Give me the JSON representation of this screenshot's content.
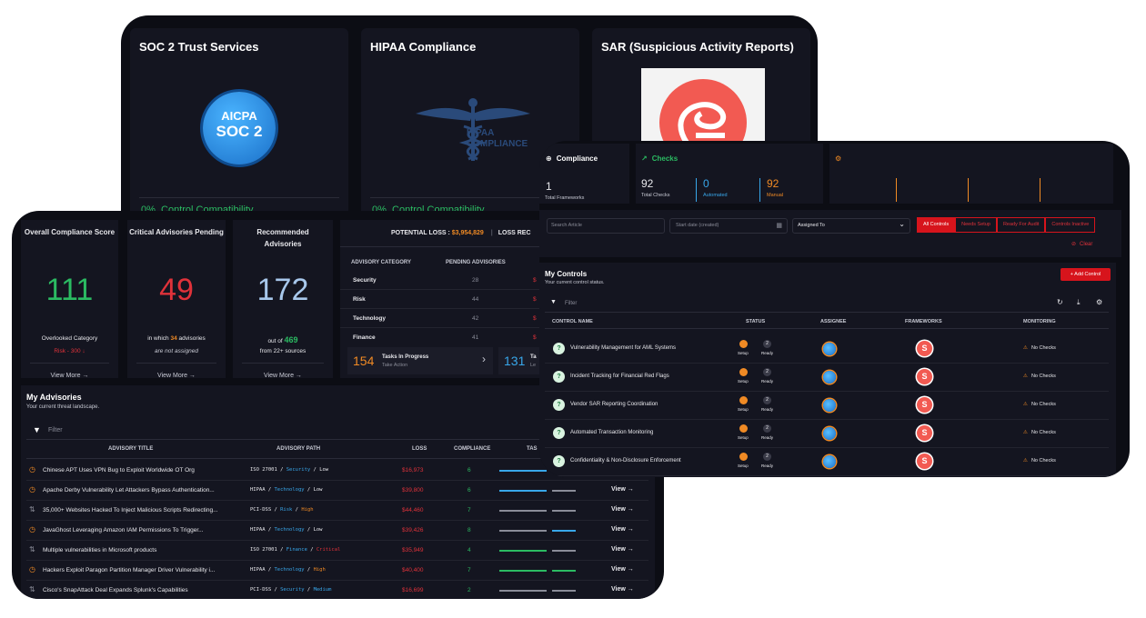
{
  "frameworks": {
    "soc2": {
      "title": "SOC 2 Trust Services",
      "logo_line1": "AICPA",
      "logo_line2": "SOC 2",
      "footer": "0%  Control Compatibility"
    },
    "hipaa": {
      "title": "HIPAA Compliance",
      "logo_text1": "HIPAA",
      "logo_text2": "COMPLIANCE",
      "footer": "0%  Control Compatibility"
    },
    "sar": {
      "title": "SAR (Suspicious Activity Reports)"
    }
  },
  "stats": [
    {
      "title": "Overall Compliance Score",
      "value": "111",
      "color": "#2bbb62",
      "sub1": "Overlooked Category",
      "sub2": "Risk - 300 ↓",
      "link": "View More →"
    },
    {
      "title": "Critical Advisories Pending",
      "value": "49",
      "color": "#e0323a",
      "sub1_pre": "in which ",
      "sub1_num": "34",
      "sub1_post": " advisories",
      "sub2": "are not assigned",
      "link": "View More →"
    },
    {
      "title": "Recommended Advisories",
      "value": "172",
      "color": "#a8c8ec",
      "sub1_pre": "out of ",
      "sub1_num": "469",
      "sub2": "from 22+ sources",
      "link": "View More →"
    }
  ],
  "loss": {
    "label": "POTENTIAL LOSS : ",
    "value": "$3,954,829",
    "label2": "LOSS REC",
    "columns": [
      "ADVISORY CATEGORY",
      "PENDING ADVISORIES"
    ],
    "rows": [
      {
        "category": "Security",
        "pending": "28"
      },
      {
        "category": "Risk",
        "pending": "44"
      },
      {
        "category": "Technology",
        "pending": "42"
      },
      {
        "category": "Finance",
        "pending": "41"
      }
    ],
    "tasks1": {
      "num": "154",
      "label": "Tasks In Progress",
      "sub": "Take Action"
    },
    "tasks2": {
      "num": "131",
      "label": "Ta",
      "sub": "Le"
    }
  },
  "advisories": {
    "title": "My Advisories",
    "subtitle": "Your current threat landscape.",
    "filter_placeholder": "Filter",
    "columns": [
      "ADVISORY TITLE",
      "ADVISORY PATH",
      "LOSS",
      "COMPLIANCE",
      "TAS"
    ],
    "view_label": "View →",
    "rows": [
      {
        "icon": "clock-icon",
        "title": "Chinese APT Uses VPN Bug to Exploit Worldwide OT Org",
        "fw": "ISO 27001",
        "cat": "Security",
        "level": "Low",
        "level_color": "#e8e8ec",
        "loss": "$16,973",
        "compliance": "6",
        "view": "View →",
        "bar1": "#38a7ea",
        "bar2": "#2bbb62"
      },
      {
        "icon": "clock-icon",
        "title": "Apache Derby Vulnerability Let Attackers Bypass Authentication...",
        "fw": "HIPAA",
        "cat": "Technology",
        "level": "Low",
        "level_color": "#e8e8ec",
        "loss": "$39,800",
        "compliance": "6",
        "view": "View →",
        "bar1": "#38a7ea",
        "bar2": "#8a8c98"
      },
      {
        "icon": "sort-icon",
        "title": "35,000+ Websites Hacked To Inject Malicious Scripts Redirecting...",
        "fw": "PCI-DSS",
        "cat": "Risk",
        "level": "High",
        "level_color": "#f08a24",
        "loss": "$44,460",
        "compliance": "7",
        "view": "View →",
        "bar1": "#8a8c98",
        "bar2": "#8a8c98"
      },
      {
        "icon": "clock-icon",
        "title": "JavaGhost Leveraging Amazon IAM Permissions To Trigger...",
        "fw": "HIPAA",
        "cat": "Technology",
        "level": "Low",
        "level_color": "#e8e8ec",
        "loss": "$39,426",
        "compliance": "8",
        "view": "View →",
        "bar1": "#8a8c98",
        "bar2": "#38a7ea"
      },
      {
        "icon": "sort-icon",
        "title": "Multiple vulnerabilities in Microsoft products",
        "fw": "ISO 27001",
        "cat": "Finance",
        "level": "Critical",
        "level_color": "#e0323a",
        "loss": "$35,949",
        "compliance": "4",
        "view": "View →",
        "bar1": "#2bbb62",
        "bar2": "#8a8c98"
      },
      {
        "icon": "clock-icon",
        "title": "Hackers Exploit Paragon Partition Manager Driver Vulnerability i...",
        "fw": "HIPAA",
        "cat": "Technology",
        "level": "High",
        "level_color": "#f08a24",
        "loss": "$40,400",
        "compliance": "7",
        "view": "View →",
        "bar1": "#2bbb62",
        "bar2": "#2bbb62"
      },
      {
        "icon": "sort-icon",
        "title": "Cisco's SnapAttack Deal Expands Splunk's Capabilities",
        "fw": "PCI-DSS",
        "cat": "Security",
        "level": "Medium",
        "level_color": "#38a7ea",
        "loss": "$16,699",
        "compliance": "2",
        "view": "View →",
        "bar1": "#8a8c98",
        "bar2": "#8a8c98"
      }
    ]
  },
  "compliance_panel": {
    "compliance": {
      "title": "Compliance",
      "value": "1",
      "label": "Total Frameworks"
    },
    "checks": {
      "title": "Checks",
      "items": [
        {
          "value": "92",
          "label": "Total Checks",
          "color": "#e8e8ec"
        },
        {
          "value": "0",
          "label": "Automated",
          "color": "#38a7ea"
        },
        {
          "value": "92",
          "label": "Manual",
          "color": "#f08a24"
        }
      ]
    },
    "controls": [
      {
        "name": "Vulnerability Management for AML Systems"
      },
      {
        "name": "Incident Tracking for Financial Red Flags"
      },
      {
        "name": "Vendor SAR Reporting Coordination"
      },
      {
        "name": "Automated Transaction Monitoring"
      },
      {
        "name": "Confidentiality & Non-Disclosure Enforcement"
      }
    ],
    "search_placeholder": "Search Article",
    "date_placeholder": "Start date (created)",
    "assigned_label": "Assigned To",
    "filter_buttons": [
      "All Controls",
      "Needs Setup",
      "Ready For Audit",
      "Controls Inactive"
    ],
    "clear_label": "Clear",
    "my_controls_title": "My Controls",
    "my_controls_sub": "Your current control status.",
    "add_control": "+ Add Control",
    "filter_placeholder": "Filter",
    "columns": [
      "CONTROL NAME",
      "STATUS",
      "ASSIGNEE",
      "FRAMEWORKS",
      "MONITORING"
    ],
    "status_setup_label": "Setup",
    "status_ready_label": "Ready",
    "status_ready_num": "2",
    "monitoring_text": "No Checks"
  }
}
